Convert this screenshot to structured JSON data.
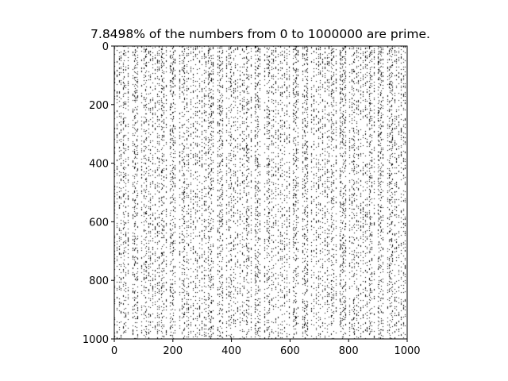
{
  "chart_data": {
    "type": "heatmap",
    "title": "7.8498% of the numbers from 0 to 1000000 are prime.",
    "xlabel": "",
    "ylabel": "",
    "grid": false,
    "matrix_size": [
      1000,
      1000
    ],
    "range_start": 0,
    "range_end": 1000000,
    "prime_fraction_percent": 7.8498,
    "xlim": [
      0,
      1000
    ],
    "ylim": [
      1000,
      0
    ],
    "x_ticks": [
      "0",
      "200",
      "400",
      "600",
      "800",
      "1000"
    ],
    "y_ticks": [
      "0",
      "200",
      "400",
      "600",
      "800",
      "1000"
    ],
    "colors": {
      "prime": "#000000",
      "composite": "#ffffff"
    }
  }
}
